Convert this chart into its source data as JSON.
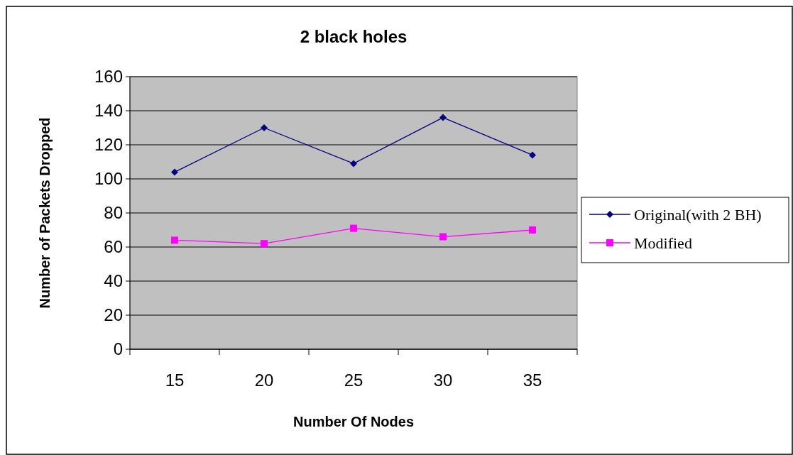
{
  "chart_data": {
    "type": "line",
    "title": "2 black holes",
    "xlabel": "Number Of Nodes",
    "ylabel": "Number of Packets Dropped",
    "categories": [
      "15",
      "20",
      "25",
      "30",
      "35"
    ],
    "series": [
      {
        "name": "Original(with 2 BH)",
        "color": "#000080",
        "marker": "diamond",
        "values": [
          104,
          130,
          109,
          136,
          114
        ]
      },
      {
        "name": "Modified",
        "color": "#ff00ff",
        "marker": "square",
        "values": [
          64,
          62,
          71,
          66,
          70
        ]
      }
    ],
    "ylim": [
      0,
      160
    ],
    "yticks": [
      0,
      20,
      40,
      60,
      80,
      100,
      120,
      140,
      160
    ],
    "grid": "y",
    "legend": "right"
  }
}
